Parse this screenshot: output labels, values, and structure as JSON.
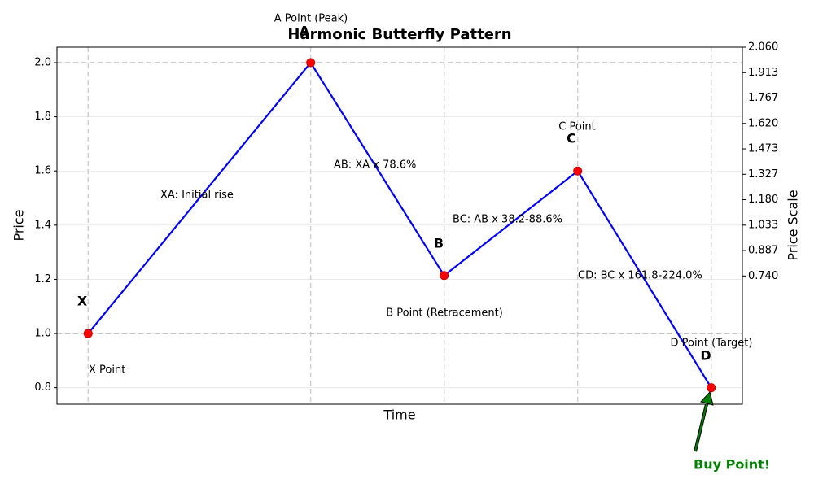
{
  "chart_data": {
    "type": "line",
    "title": "Harmonic Butterfly Pattern",
    "x_label": "Time",
    "y_label": "Price",
    "y2_label": "Price Scale",
    "x": [
      0,
      5,
      8,
      11,
      14
    ],
    "xlim": [
      -0.7,
      14.7
    ],
    "series": [
      {
        "color": "#0000ff",
        "marker_color": "#ff0000",
        "values": [
          1.0,
          2.0,
          1.214,
          1.6,
          0.8
        ]
      }
    ],
    "ylim": [
      0.739,
      2.057
    ],
    "yticks": [
      {
        "value": 0.8,
        "label": "0.8"
      },
      {
        "value": 1.0,
        "label": "1.0"
      },
      {
        "value": 1.2,
        "label": "1.2"
      },
      {
        "value": 1.4,
        "label": "1.4"
      },
      {
        "value": 1.6,
        "label": "1.6"
      },
      {
        "value": 1.8,
        "label": "1.8"
      },
      {
        "value": 2.0,
        "label": "2.0"
      }
    ],
    "y2lim": [
      0,
      2.06
    ],
    "y2ticks": [
      {
        "value": 0.74,
        "label": "0.740"
      },
      {
        "value": 0.8867,
        "label": "0.887"
      },
      {
        "value": 1.0333,
        "label": "1.033"
      },
      {
        "value": 1.18,
        "label": "1.180"
      },
      {
        "value": 1.3267,
        "label": "1.327"
      },
      {
        "value": 1.4733,
        "label": "1.473"
      },
      {
        "value": 1.62,
        "label": "1.620"
      },
      {
        "value": 1.7667,
        "label": "1.767"
      },
      {
        "value": 1.9133,
        "label": "1.913"
      },
      {
        "value": 2.06,
        "label": "2.060"
      }
    ],
    "grid": true,
    "point_letters": [
      "X",
      "A",
      "B",
      "C",
      "D"
    ],
    "point_notes": [
      "X Point",
      "A Point (Peak)",
      "B Point (Retracement)",
      "C Point",
      "D Point (Target)"
    ],
    "leg_notes": [
      "XA: Initial rise",
      "AB: XA x 78.6%",
      "BC: AB x 38.2-88.6%",
      "CD: BC x 161.8-224.0%"
    ],
    "buy_annotation": "Buy Point!"
  }
}
